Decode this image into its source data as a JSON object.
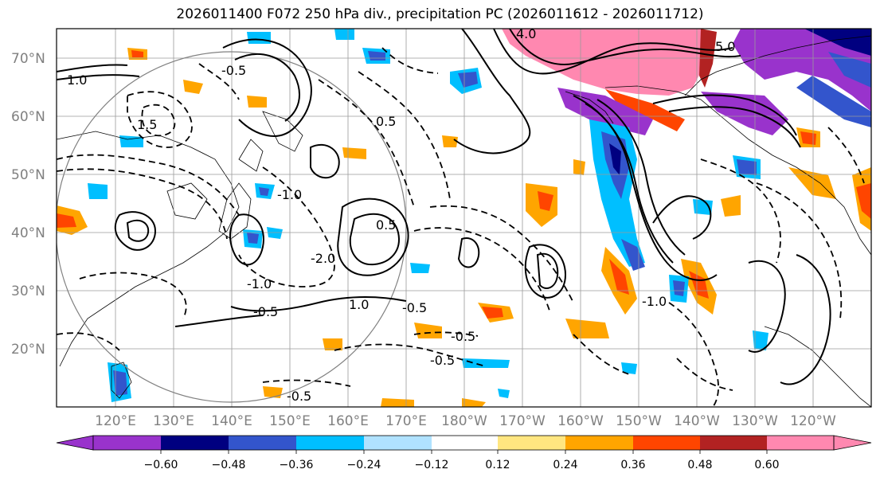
{
  "title": "2026011400 F072 250 hPa div., precipitation PC (2026011612 - 2026011712)",
  "map": {
    "lon_labels": [
      "120°E",
      "130°E",
      "140°E",
      "150°E",
      "160°E",
      "170°E",
      "180°W",
      "170°W",
      "160°W",
      "150°W",
      "140°W",
      "130°W",
      "120°W"
    ],
    "lat_labels": [
      "70°N",
      "60°N",
      "50°N",
      "40°N",
      "30°N",
      "20°N"
    ],
    "contour_labels": [
      "4.0",
      "1.0",
      "-0.5",
      "0.5",
      "-1.0",
      "1.5",
      "-2.0",
      "-0.5",
      "-0.5",
      "-0.5",
      "-0.5",
      "5.0",
      "-1.0",
      "0.5",
      "-1.0",
      "1.0",
      "-0.5"
    ],
    "colors": {
      "grid": "#9a9a9a",
      "coast": "#000000",
      "contour": "#000000",
      "circle": "#808080"
    }
  },
  "colorbar": {
    "colors": [
      "#9933cc",
      "#000080",
      "#3355cc",
      "#00bfff",
      "#b0e2ff",
      "#ffffff",
      "#ffe680",
      "#ffa500",
      "#ff4500",
      "#b22222",
      "#ff88b0"
    ],
    "tick_labels": [
      "−0.60",
      "−0.48",
      "−0.36",
      "−0.24",
      "−0.12",
      "0.12",
      "0.24",
      "0.36",
      "0.48",
      "0.60"
    ]
  }
}
